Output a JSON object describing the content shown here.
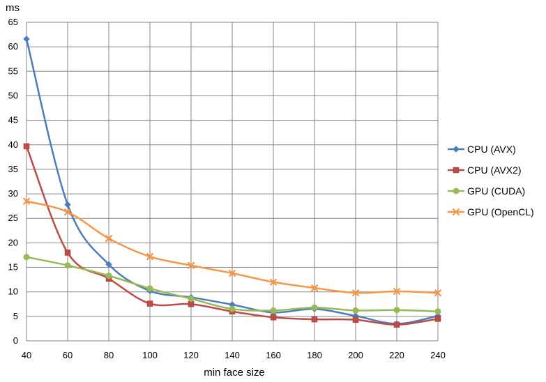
{
  "chart_data": {
    "type": "line",
    "title": "",
    "ylabel": "ms",
    "xlabel": "min face size",
    "x": [
      40,
      60,
      80,
      100,
      120,
      140,
      160,
      180,
      200,
      220,
      240
    ],
    "xlim": [
      40,
      240
    ],
    "ylim": [
      0,
      65
    ],
    "yticks": [
      0,
      5,
      10,
      15,
      20,
      25,
      30,
      35,
      40,
      45,
      50,
      55,
      60,
      65
    ],
    "grid": true,
    "legend_position": "right",
    "smooth": true,
    "series": [
      {
        "name": "CPU (AVX)",
        "color": "#4a7ebb",
        "marker": "diamond",
        "values": [
          61.6,
          27.8,
          15.6,
          10.2,
          8.9,
          7.4,
          5.8,
          6.5,
          5.1,
          3.5,
          5.1
        ]
      },
      {
        "name": "CPU (AVX2)",
        "color": "#be4b48",
        "marker": "square",
        "values": [
          39.7,
          18.0,
          12.7,
          7.6,
          7.5,
          6.0,
          4.8,
          4.4,
          4.3,
          3.3,
          4.5
        ]
      },
      {
        "name": "GPU (CUDA)",
        "color": "#98b954",
        "marker": "circle",
        "values": [
          17.1,
          15.4,
          13.3,
          10.7,
          8.6,
          6.5,
          6.2,
          6.8,
          6.2,
          6.3,
          6.0
        ]
      },
      {
        "name": "GPU (OpenCL)",
        "color": "#f79646",
        "marker": "x",
        "values": [
          28.5,
          26.3,
          20.9,
          17.2,
          15.4,
          13.8,
          12.0,
          10.8,
          9.8,
          10.1,
          9.8
        ]
      }
    ]
  }
}
